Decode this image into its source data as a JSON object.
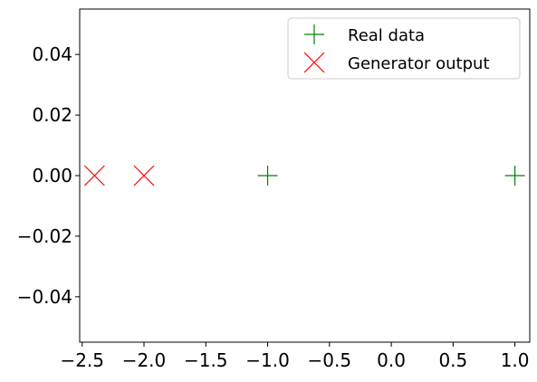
{
  "chart_data": {
    "type": "scatter",
    "xlim": [
      -2.52,
      1.12
    ],
    "ylim": [
      -0.055,
      0.055
    ],
    "x_ticks": [
      -2.5,
      -2.0,
      -1.5,
      -1.0,
      -0.5,
      0.0,
      0.5,
      1.0
    ],
    "x_tick_labels": [
      "−2.5",
      "−2.0",
      "−1.5",
      "−1.0",
      "−0.5",
      "0.0",
      "0.5",
      "1.0"
    ],
    "y_ticks": [
      0.04,
      0.02,
      0.0,
      -0.02,
      -0.04
    ],
    "y_tick_labels": [
      "0.04",
      "0.02",
      "0.00",
      "−0.02",
      "−0.04"
    ],
    "grid": false,
    "legend_position": "top-right",
    "series": [
      {
        "name": "Real data",
        "marker": "plus",
        "color": "#008000",
        "points": [
          {
            "x": -1.0,
            "y": 0.0
          },
          {
            "x": 1.0,
            "y": 0.0
          }
        ]
      },
      {
        "name": "Generator output",
        "marker": "x",
        "color": "#ff0000",
        "points": [
          {
            "x": -2.4,
            "y": 0.0
          },
          {
            "x": -2.0,
            "y": 0.0
          }
        ]
      }
    ]
  }
}
